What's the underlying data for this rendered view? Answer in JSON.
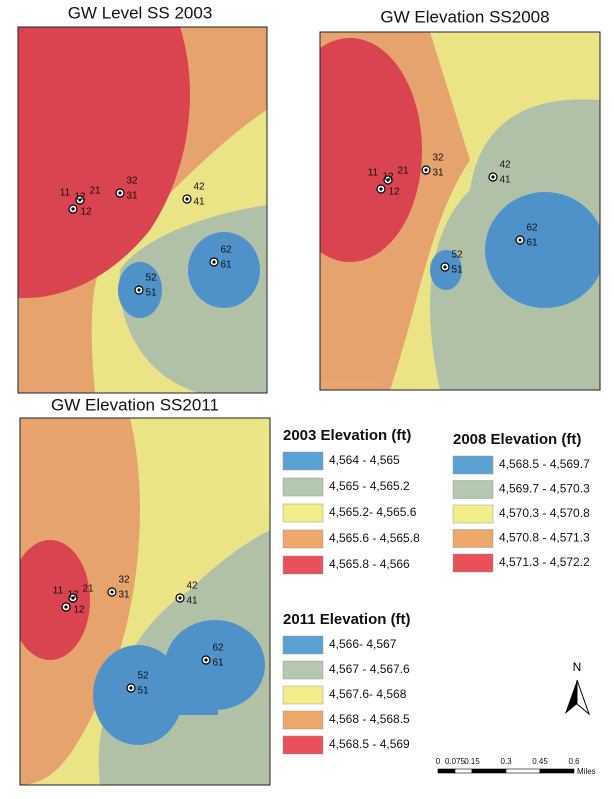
{
  "maps": [
    {
      "title": "GW Level SS 2003",
      "labels": [
        "11",
        "12",
        "21",
        "12",
        "32",
        "31",
        "42",
        "41",
        "52",
        "51",
        "62",
        "61"
      ]
    },
    {
      "title": "GW Elevation SS2008",
      "labels": [
        "11",
        "12",
        "21",
        "12",
        "32",
        "31",
        "42",
        "41",
        "52",
        "51",
        "62",
        "61"
      ]
    },
    {
      "title": "GW Elevation SS2011",
      "labels": [
        "11",
        "12",
        "21",
        "12",
        "32",
        "31",
        "42",
        "41",
        "52",
        "51",
        "62",
        "61"
      ]
    }
  ],
  "legends": [
    {
      "title": "2003 Elevation (ft)",
      "classes": [
        "4,564 - 4,565",
        "4,565 - 4,565.2",
        "4,565.2- 4,565.6",
        "4,565.6 - 4,565.8",
        "4,565.8 - 4,566"
      ],
      "colors": [
        "#5aa2d4",
        "#b4c8b0",
        "#f2ee8a",
        "#efa86a",
        "#e9505c"
      ]
    },
    {
      "title": "2008 Elevation (ft)",
      "classes": [
        "4,568.5 - 4,569.7",
        "4,569.7 - 4,570.3",
        "4,570.3 - 4,570.8",
        "4,570.8 - 4,571.3",
        "4,571.3 - 4,572.2"
      ],
      "colors": [
        "#5aa2d4",
        "#b4c8b0",
        "#f2ee8a",
        "#efa86a",
        "#e9505c"
      ]
    },
    {
      "title": "2011 Elevation (ft)",
      "classes": [
        "4,566- 4,567",
        "4,567 - 4,567.6",
        "4,567.6- 4,568",
        "4,568 - 4,568.5",
        "4,568.5 - 4,569"
      ],
      "colors": [
        "#5aa2d4",
        "#b4c8b0",
        "#f2ee8a",
        "#efa86a",
        "#e9505c"
      ]
    }
  ],
  "north": "N",
  "scale": {
    "ticks": [
      "0",
      "0.075",
      "0.15",
      "0.3",
      "0.45",
      "0.6"
    ],
    "unit": "Miles"
  }
}
